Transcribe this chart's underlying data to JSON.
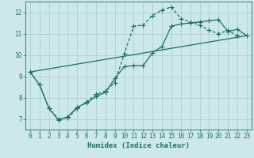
{
  "xlabel": "Humidex (Indice chaleur)",
  "bg_color": "#cce8e8",
  "grid_color": "#b0d4d4",
  "line_color": "#1a6e6a",
  "xlim": [
    -0.5,
    23.5
  ],
  "ylim": [
    6.5,
    12.5
  ],
  "yticks": [
    7,
    8,
    9,
    10,
    11,
    12
  ],
  "xticks": [
    0,
    1,
    2,
    3,
    4,
    5,
    6,
    7,
    8,
    9,
    10,
    11,
    12,
    13,
    14,
    15,
    16,
    17,
    18,
    19,
    20,
    21,
    22,
    23
  ],
  "line1_x": [
    0,
    1,
    2,
    3,
    4,
    5,
    6,
    7,
    8,
    9,
    10,
    11,
    12,
    13,
    14,
    15,
    16,
    17,
    18,
    19,
    20,
    21,
    22,
    23
  ],
  "line1_y": [
    9.2,
    8.6,
    7.5,
    7.0,
    7.05,
    7.5,
    7.8,
    8.15,
    8.3,
    8.7,
    10.05,
    11.35,
    11.4,
    11.85,
    12.1,
    12.25,
    11.7,
    11.55,
    11.4,
    11.15,
    11.0,
    11.15,
    10.9,
    null
  ],
  "line2_x": [
    0,
    1,
    2,
    3,
    4,
    5,
    6,
    7,
    8,
    9,
    10,
    11,
    12,
    13,
    14,
    15,
    16,
    17,
    18,
    19,
    20,
    21,
    22,
    23
  ],
  "line2_y": [
    9.2,
    8.6,
    7.5,
    6.95,
    7.1,
    7.55,
    7.75,
    8.05,
    8.25,
    8.9,
    9.45,
    9.5,
    9.5,
    10.1,
    10.4,
    11.35,
    11.45,
    11.5,
    11.55,
    11.6,
    11.65,
    11.1,
    11.2,
    10.9
  ],
  "line3_x": [
    0,
    23
  ],
  "line3_y": [
    9.2,
    10.9
  ]
}
